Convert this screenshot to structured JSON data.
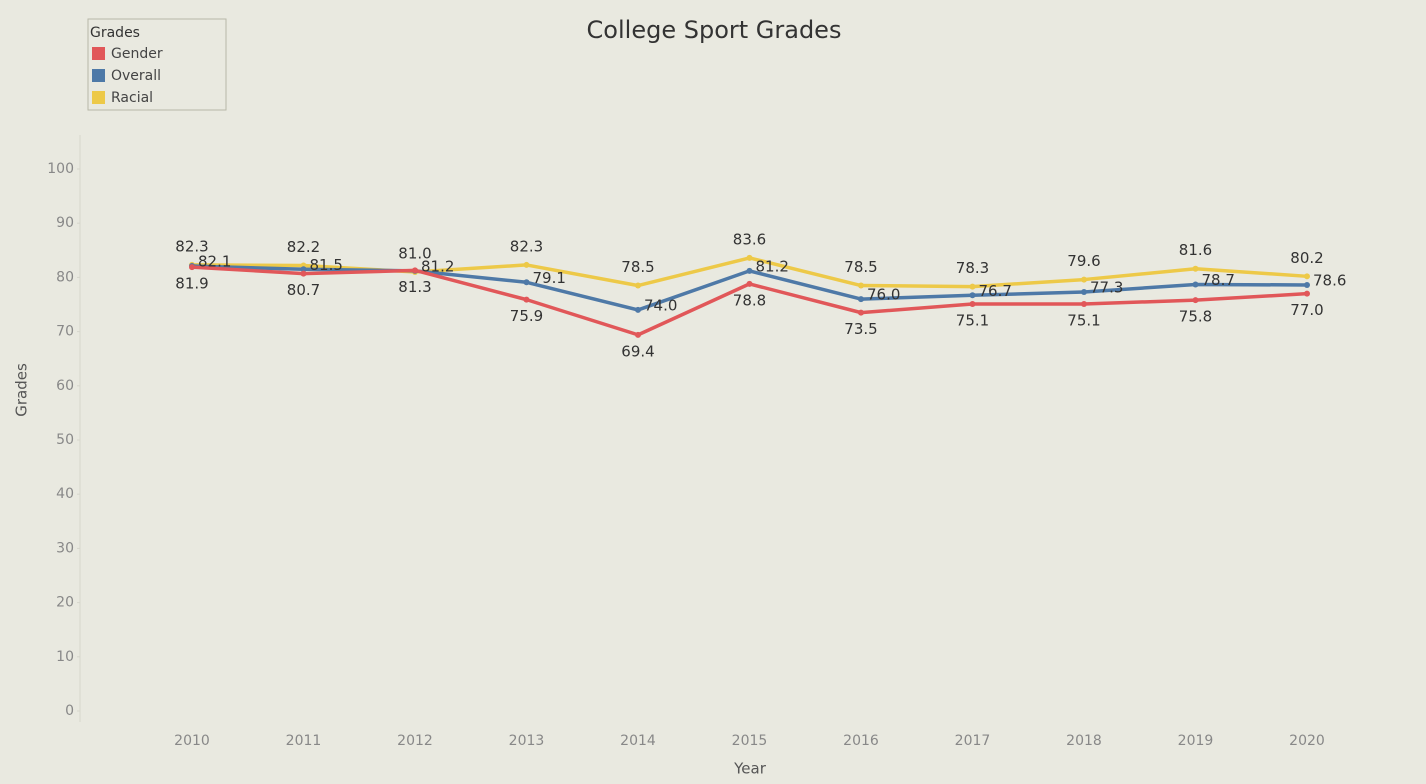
{
  "chart_data": {
    "type": "line",
    "title": "College Sport Grades",
    "x_label": "Year",
    "y_label": "Grades",
    "legend_title": "Grades",
    "legend": "top-left",
    "categories": [
      "2010",
      "2011",
      "2012",
      "2013",
      "2014",
      "2015",
      "2016",
      "2017",
      "2018",
      "2019",
      "2020"
    ],
    "ylim": [
      0,
      100
    ],
    "yticks": [
      0,
      10,
      20,
      30,
      40,
      50,
      60,
      70,
      80,
      90,
      100
    ],
    "grid": false,
    "series": [
      {
        "name": "Gender",
        "color": "#e15759",
        "values": [
          81.9,
          80.7,
          81.3,
          75.9,
          69.4,
          78.8,
          73.5,
          75.1,
          75.1,
          75.8,
          77.0
        ],
        "value_labels": [
          "81.9",
          "80.7",
          "81.3",
          "75.9",
          "69.4",
          "78.8",
          "73.5",
          "75.1",
          "75.1",
          "75.8",
          "77.0"
        ]
      },
      {
        "name": "Overall",
        "color": "#4e79a7",
        "values": [
          82.1,
          81.5,
          81.2,
          79.1,
          74.0,
          81.2,
          76.0,
          76.7,
          77.3,
          78.7,
          78.6
        ],
        "value_labels": [
          "82.1",
          "81.5",
          "81.2",
          "79.1",
          "74.0",
          "81.2",
          "76.0",
          "76.7",
          "77.3",
          "78.7",
          "78.6"
        ]
      },
      {
        "name": "Racial",
        "color": "#edc948",
        "values": [
          82.3,
          82.2,
          81.0,
          82.3,
          78.5,
          83.6,
          78.5,
          78.3,
          79.6,
          81.6,
          80.2
        ],
        "value_labels": [
          "82.3",
          "82.2",
          "81.0",
          "82.3",
          "78.5",
          "83.6",
          "78.5",
          "78.3",
          "79.6",
          "81.6",
          "80.2"
        ]
      }
    ]
  }
}
